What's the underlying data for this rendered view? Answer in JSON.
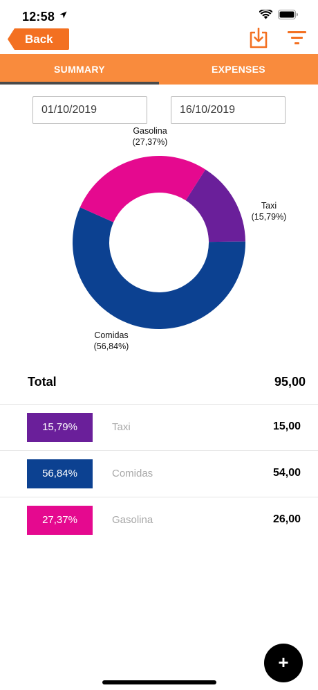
{
  "status": {
    "time": "12:58"
  },
  "nav": {
    "back_label": "Back"
  },
  "tabs": [
    {
      "label": "SUMMARY",
      "active": true
    },
    {
      "label": "EXPENSES",
      "active": false
    }
  ],
  "dates": {
    "from": "01/10/2019",
    "to": "16/10/2019"
  },
  "colors": {
    "accent": "#f98b3d",
    "orange": "#f37021",
    "taxi": "#6a1f9a",
    "comidas": "#0c4191",
    "gasolina": "#e5098f"
  },
  "chart_data": {
    "type": "pie",
    "donut": true,
    "slices": [
      {
        "category": "Taxi",
        "percent": 15.79,
        "label": "(15,79%)",
        "color": "#6a1f9a"
      },
      {
        "category": "Comidas",
        "percent": 56.84,
        "label": "(56,84%)",
        "color": "#0c4191"
      },
      {
        "category": "Gasolina",
        "percent": 27.37,
        "label": "(27,37%)",
        "color": "#e5098f"
      }
    ]
  },
  "summary": {
    "total_label": "Total",
    "total_value": "95,00",
    "rows": [
      {
        "percent": "15,79%",
        "name": "Taxi",
        "amount": "15,00",
        "color": "#6a1f9a"
      },
      {
        "percent": "56,84%",
        "name": "Comidas",
        "amount": "54,00",
        "color": "#0c4191"
      },
      {
        "percent": "27,37%",
        "name": "Gasolina",
        "amount": "26,00",
        "color": "#e5098f"
      }
    ]
  },
  "fab": {
    "label": "+"
  }
}
